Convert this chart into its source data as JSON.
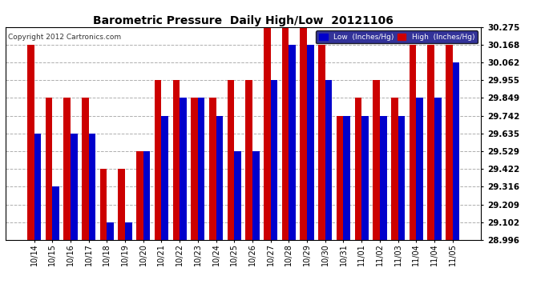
{
  "title": "Barometric Pressure  Daily High/Low  20121106",
  "copyright": "Copyright 2012 Cartronics.com",
  "legend_low": "Low  (Inches/Hg)",
  "legend_high": "High  (Inches/Hg)",
  "categories": [
    "10/14",
    "10/15",
    "10/16",
    "10/17",
    "10/18",
    "10/19",
    "10/20",
    "10/21",
    "10/22",
    "10/23",
    "10/24",
    "10/25",
    "10/26",
    "10/27",
    "10/28",
    "10/29",
    "10/30",
    "10/31",
    "11/01",
    "11/02",
    "11/03",
    "11/04",
    "11/04",
    "11/05"
  ],
  "low_values": [
    29.635,
    29.316,
    29.635,
    29.635,
    29.102,
    29.102,
    29.529,
    29.742,
    29.849,
    29.849,
    29.742,
    29.529,
    29.529,
    29.955,
    30.168,
    30.168,
    29.955,
    29.742,
    29.742,
    29.742,
    29.742,
    29.849,
    29.849,
    30.062
  ],
  "high_values": [
    30.168,
    29.849,
    29.849,
    29.849,
    29.422,
    29.422,
    29.529,
    29.955,
    29.955,
    29.849,
    29.849,
    29.955,
    29.955,
    30.275,
    30.275,
    30.275,
    30.168,
    29.742,
    29.849,
    29.955,
    29.849,
    30.168,
    30.168,
    30.168
  ],
  "ylim_min": 28.996,
  "ylim_max": 30.275,
  "yticks": [
    28.996,
    29.102,
    29.209,
    29.316,
    29.422,
    29.529,
    29.635,
    29.742,
    29.849,
    29.955,
    30.062,
    30.168,
    30.275
  ],
  "low_color": "#0000cc",
  "high_color": "#cc0000",
  "bg_color": "#ffffff",
  "grid_color": "#999999",
  "title_color": "#000000",
  "bar_width": 0.38
}
